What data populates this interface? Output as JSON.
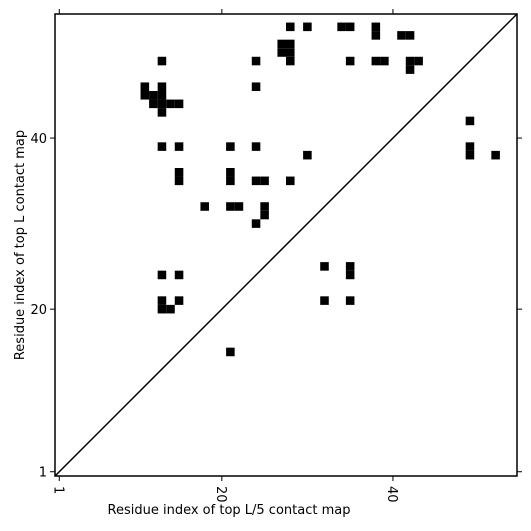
{
  "chart_data": {
    "type": "scatter",
    "xlabel": "Residue index of top L/5 contact map",
    "ylabel": "Residue index of top L contact map",
    "x": [
      28,
      30,
      34,
      35,
      38,
      38,
      41,
      42,
      27,
      28,
      27,
      28,
      28,
      13,
      24,
      35,
      38,
      39,
      42,
      43,
      42,
      24,
      11,
      11,
      12,
      13,
      13,
      12,
      13,
      14,
      15,
      13,
      49,
      13,
      15,
      21,
      24,
      49,
      49,
      52,
      30,
      15,
      15,
      21,
      21,
      24,
      25,
      28,
      18,
      21,
      22,
      25,
      25,
      24,
      13,
      15,
      32,
      35,
      35,
      13,
      15,
      13,
      14,
      32,
      35,
      21
    ],
    "y": [
      53,
      53,
      53,
      53,
      53,
      52,
      52,
      52,
      51,
      51,
      50,
      50,
      49,
      49,
      49,
      49,
      49,
      49,
      49,
      49,
      48,
      46,
      46,
      45,
      45,
      46,
      45,
      44,
      44,
      44,
      44,
      43,
      42,
      39,
      39,
      39,
      39,
      39,
      38,
      38,
      38,
      36,
      35,
      36,
      35,
      35,
      35,
      35,
      32,
      32,
      32,
      32,
      31,
      30,
      24,
      24,
      25,
      25,
      24,
      21,
      21,
      20,
      20,
      21,
      21,
      15
    ],
    "color": "#000000",
    "xlim": [
      0.5,
      54.5
    ],
    "ylim": [
      0.5,
      54.5
    ],
    "xticks": [
      1,
      20,
      40
    ],
    "yticks": [
      1,
      20,
      40
    ],
    "diagonal": true
  }
}
